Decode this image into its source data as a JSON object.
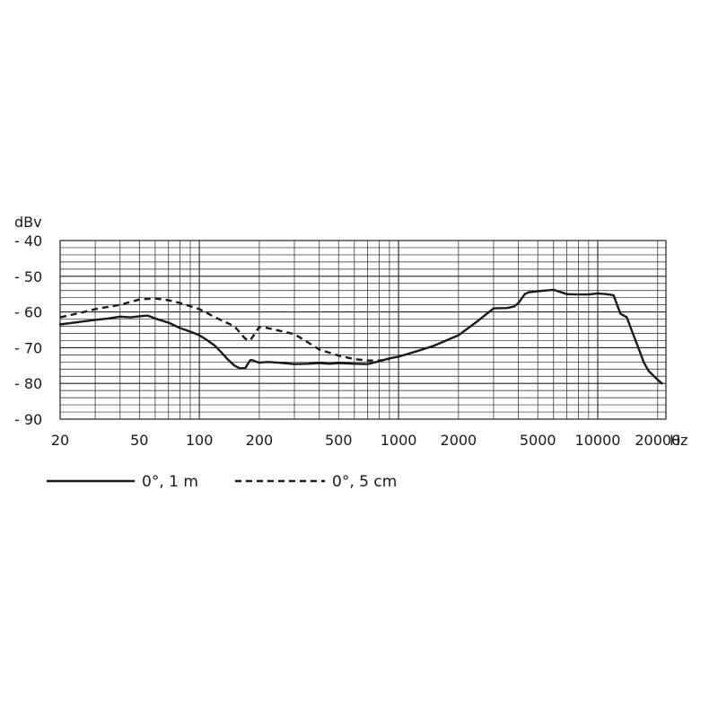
{
  "chart_data": {
    "type": "line",
    "x_scale": "log",
    "y_unit_label": "dBv",
    "x_unit_label": "Hz",
    "xlim": [
      20,
      22000
    ],
    "ylim": [
      -90,
      -40
    ],
    "grid": true,
    "x_ticks": [
      {
        "value": 20,
        "label": "20"
      },
      {
        "value": 50,
        "label": "50"
      },
      {
        "value": 100,
        "label": "100"
      },
      {
        "value": 200,
        "label": "200"
      },
      {
        "value": 500,
        "label": "500"
      },
      {
        "value": 1000,
        "label": "1000"
      },
      {
        "value": 2000,
        "label": "2000"
      },
      {
        "value": 5000,
        "label": "5000"
      },
      {
        "value": 10000,
        "label": "10000"
      },
      {
        "value": 20000,
        "label": "20000"
      }
    ],
    "y_ticks": [
      {
        "value": -40,
        "label": "- 40"
      },
      {
        "value": -50,
        "label": "- 50"
      },
      {
        "value": -60,
        "label": "- 60"
      },
      {
        "value": -70,
        "label": "- 70"
      },
      {
        "value": -80,
        "label": "- 80"
      },
      {
        "value": -90,
        "label": "- 90"
      }
    ],
    "legend_position": "bottom-left",
    "series": [
      {
        "name": "0°, 1 m",
        "style": "solid",
        "x": [
          20,
          25,
          30,
          35,
          40,
          45,
          50,
          55,
          60,
          70,
          80,
          90,
          100,
          110,
          120,
          130,
          140,
          150,
          160,
          170,
          180,
          185,
          190,
          200,
          220,
          250,
          300,
          350,
          400,
          450,
          500,
          600,
          700,
          800,
          900,
          1000,
          1200,
          1500,
          2000,
          2500,
          3000,
          3500,
          3800,
          4000,
          4300,
          4500,
          5000,
          5500,
          6000,
          7000,
          8000,
          9000,
          10000,
          11000,
          12000,
          13000,
          13500,
          14000,
          15000,
          16000,
          17000,
          18000,
          20000,
          21000
        ],
        "y": [
          -63.5,
          -62.8,
          -62.2,
          -61.8,
          -61.3,
          -61.5,
          -61.2,
          -61,
          -61.8,
          -63,
          -64.5,
          -65.5,
          -66.5,
          -68,
          -69.5,
          -71.5,
          -73.5,
          -75,
          -75.8,
          -75.7,
          -73.5,
          -73.5,
          -73.8,
          -74.2,
          -74,
          -74.2,
          -74.6,
          -74.5,
          -74.3,
          -74.5,
          -74.3,
          -74.5,
          -74.6,
          -73.8,
          -73,
          -72.5,
          -71.2,
          -69.5,
          -66.5,
          -62.5,
          -59,
          -58.9,
          -58.5,
          -57.5,
          -55,
          -54.5,
          -54.2,
          -54,
          -53.8,
          -55,
          -55.1,
          -55.1,
          -54.8,
          -55,
          -55.3,
          -60.5,
          -61,
          -61.5,
          -66,
          -70,
          -74,
          -76.5,
          -79,
          -80
        ]
      },
      {
        "name": "0°, 5 cm",
        "style": "dashed",
        "x": [
          20,
          25,
          30,
          40,
          50,
          60,
          70,
          80,
          100,
          120,
          150,
          170,
          180,
          200,
          220,
          250,
          300,
          350,
          400,
          500,
          600,
          700,
          800,
          900
        ],
        "y": [
          -61.5,
          -60.3,
          -59.2,
          -58,
          -56.5,
          -56.2,
          -56.7,
          -57.5,
          -59.2,
          -61.5,
          -64,
          -67.5,
          -68,
          -64.2,
          -64.5,
          -65.2,
          -66.2,
          -68.5,
          -70.5,
          -72.2,
          -73.2,
          -73.6,
          -73.6,
          -73.3
        ]
      }
    ]
  }
}
